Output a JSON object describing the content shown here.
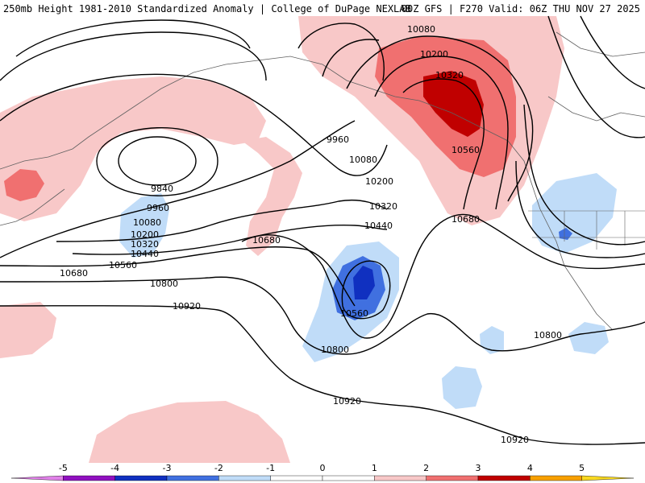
{
  "header": {
    "title_left": "250mb Height 1981-2010 Standardized Anomaly | College of DuPage NEXLAB",
    "title_right": "00Z GFS | F270 Valid: 06Z THU NOV 27 2025"
  },
  "colors": {
    "neg5": "#e080e8",
    "neg4": "#9010c0",
    "neg3": "#1030c0",
    "neg2": "#4070e0",
    "neg1": "#c0dcf8",
    "zero": "#ffffff",
    "pos1": "#f8c8c8",
    "pos2": "#f07070",
    "pos3": "#c00000",
    "pos4": "#f8a000",
    "pos5": "#f8d820"
  },
  "legend": {
    "ticks": [
      "-5",
      "-4",
      "-3",
      "-2",
      "-1",
      "0",
      "1",
      "2",
      "3",
      "4",
      "5"
    ]
  },
  "contour_labels": {
    "c9840": "9840",
    "c9960a": "9960",
    "c9960b": "9960",
    "c10080a": "10080",
    "c10080b": "10080",
    "c10080c": "10080",
    "c10200a": "10200",
    "c10200b": "10200",
    "c10200c": "10200",
    "c10320a": "10320",
    "c10320b": "10320",
    "c10320c": "10320",
    "c10440a": "10440",
    "c10440b": "10440",
    "c10560a": "10560",
    "c10560b": "10560",
    "c10560c": "10560",
    "c10680a": "10680",
    "c10680b": "10680",
    "c10680c": "10680",
    "c10800a": "10800",
    "c10800b": "10800",
    "c10800c": "10800",
    "c10920a": "10920",
    "c10920b": "10920",
    "c10920c": "10920"
  }
}
